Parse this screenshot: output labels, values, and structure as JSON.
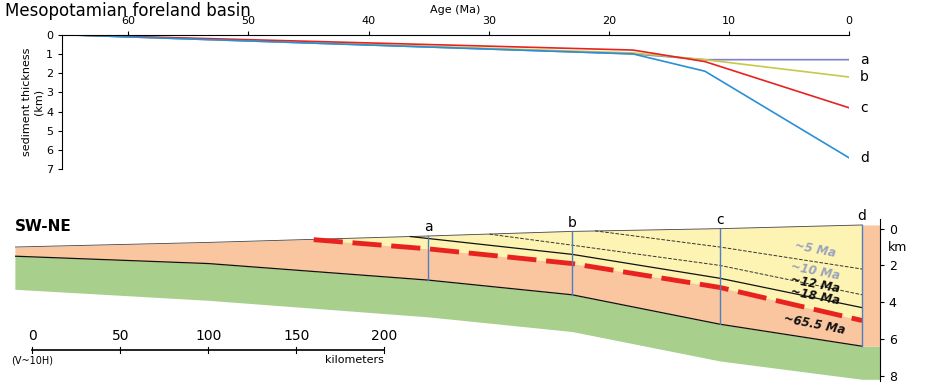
{
  "chart_data": [
    {
      "type": "line",
      "title": "Mesopotamian foreland basin",
      "xlabel": "Age (Ma)",
      "ylabel": "sediment thickness\n(km)",
      "xlim": [
        65.5,
        0
      ],
      "xticks": [
        60,
        50,
        40,
        30,
        20,
        10,
        0
      ],
      "ylim": [
        7,
        0
      ],
      "yticks": [
        0,
        1,
        2,
        3,
        4,
        5,
        6,
        7
      ],
      "series": [
        {
          "name": "a",
          "color": "#8080c8",
          "x": [
            65.5,
            18,
            12,
            0
          ],
          "values": [
            0,
            1.0,
            1.3,
            1.3
          ]
        },
        {
          "name": "b",
          "color": "#c8c84a",
          "x": [
            65.5,
            18,
            12,
            0
          ],
          "values": [
            0,
            0.95,
            1.3,
            2.2
          ]
        },
        {
          "name": "c",
          "color": "#e8231f",
          "x": [
            65.5,
            18,
            12,
            0
          ],
          "values": [
            0,
            0.8,
            1.4,
            3.8
          ]
        },
        {
          "name": "d",
          "color": "#2a8fd4",
          "x": [
            65.5,
            18,
            12,
            0
          ],
          "values": [
            0,
            1.0,
            1.9,
            6.4
          ]
        }
      ]
    },
    {
      "type": "cross_section",
      "title": "SW-NE",
      "xlim": [
        -10,
        482
      ],
      "ylim": [
        8.3,
        -0.5
      ],
      "yticks": [
        0,
        2,
        4,
        6,
        8
      ],
      "ylabel": "km",
      "tick_labels": "y",
      "color": "#4f7fc0",
      "colors": [
        "#fdf3b3",
        "#f9c6a0",
        "#a8cf8c"
      ],
      "scale_bar": {
        "ticks": [
          0,
          50,
          100,
          150,
          200
        ],
        "label": "kilometers",
        "note": "(V~10H)"
      },
      "surface": {
        "x": [
          -10,
          100,
          225,
          307,
          391,
          472
        ],
        "depths": [
          1.0,
          0.75,
          0.4,
          0.15,
          0.0,
          -0.2
        ]
      },
      "basement_base": {
        "x": [
          -10,
          100,
          225,
          307,
          391,
          472
        ],
        "depths": [
          3.3,
          3.9,
          4.8,
          5.6,
          7.2,
          8.2
        ]
      },
      "horizons": [
        {
          "label": "~5 Ma",
          "line_style": "dashed",
          "color": "#333333",
          "x": [
            320,
            391,
            472
          ],
          "depths": [
            0.12,
            1.0,
            2.2
          ]
        },
        {
          "label": "~10 Ma",
          "line_style": "dashed",
          "color": "#333333",
          "x": [
            260,
            307,
            391,
            472
          ],
          "depths": [
            0.3,
            0.9,
            2.0,
            3.6
          ]
        },
        {
          "label": "~12 Ma",
          "line_style": "solid",
          "color": "#111111",
          "x": [
            215,
            307,
            391,
            472
          ],
          "depths": [
            0.43,
            1.4,
            2.7,
            4.3
          ]
        },
        {
          "label": "~18 Ma",
          "line_style": "thick_dashed",
          "color": "#e8231f",
          "x": [
            160,
            225,
            307,
            391,
            472
          ],
          "depths": [
            0.6,
            1.1,
            1.9,
            3.2,
            5.0
          ]
        },
        {
          "label": "~65.5 Ma",
          "line_style": "solid",
          "color": "#111111",
          "x": [
            -10,
            100,
            225,
            307,
            391,
            472
          ],
          "depths": [
            1.5,
            1.9,
            2.8,
            3.6,
            5.2,
            6.4
          ]
        }
      ],
      "wells": [
        {
          "label": "a",
          "x": 225
        },
        {
          "label": "b",
          "x": 307
        },
        {
          "label": "c",
          "x": 391
        },
        {
          "label": "d",
          "x": 472
        }
      ]
    }
  ]
}
